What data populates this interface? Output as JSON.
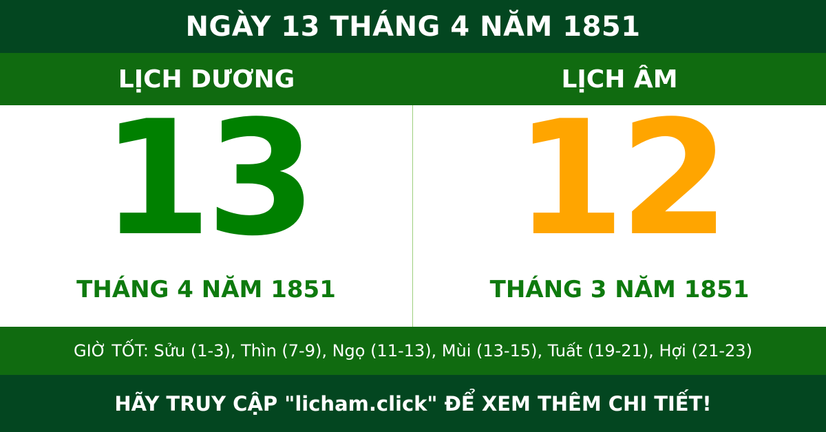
{
  "title": "NGÀY 13 THÁNG 4 NĂM 1851",
  "solar": {
    "heading": "LỊCH DƯƠNG",
    "day": "13",
    "month_year": "THÁNG 4 NĂM 1851"
  },
  "lunar": {
    "heading": "LỊCH ÂM",
    "day": "12",
    "month_year": "THÁNG 3 NĂM 1851"
  },
  "good_hours": "GIỜ TỐT: Sửu (1-3), Thìn (7-9), Ngọ (11-13), Mùi (13-15), Tuất (19-21), Hợi (21-23)",
  "footer": "HÃY TRUY CẬP \"licham.click\" ĐỂ XEM THÊM CHI TIẾT!",
  "colors": {
    "dark_green": "#034620",
    "band_green": "#106b10",
    "solar_day": "#008000",
    "lunar_day": "#FFA500"
  }
}
